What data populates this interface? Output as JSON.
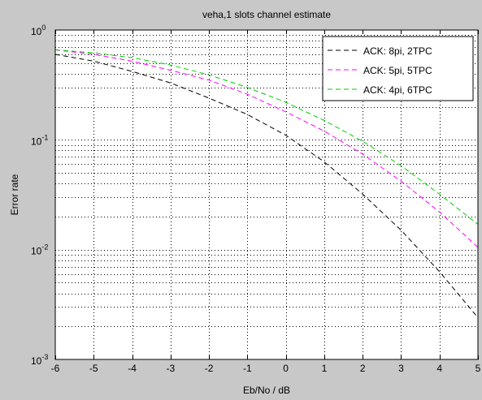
{
  "chart_data": {
    "type": "line",
    "title": "veha,1 slots channel estimate",
    "xlabel": "Eb/No / dB",
    "ylabel": "Error rate",
    "xlim": [
      -6,
      5
    ],
    "ylim": [
      0.001,
      1
    ],
    "yscale": "log",
    "grid": "on (dotted, major and minor)",
    "legend_position": "top-right",
    "x_ticks": [
      "-6",
      "-5",
      "-4",
      "-3",
      "-2",
      "-1",
      "0",
      "1",
      "2",
      "3",
      "4",
      "5"
    ],
    "y_ticks": [
      {
        "base": "10",
        "exp": "0",
        "value": 1
      },
      {
        "base": "10",
        "exp": "-1",
        "value": 0.1
      },
      {
        "base": "10",
        "exp": "-2",
        "value": 0.01
      },
      {
        "base": "10",
        "exp": "-3",
        "value": 0.001
      }
    ],
    "x": [
      -6,
      -5,
      -4,
      -3,
      -2,
      -1,
      0,
      1,
      2,
      3,
      4,
      5
    ],
    "series": [
      {
        "name": "ACK: 8pi, 2TPC",
        "color": "#000000",
        "values": [
          0.6,
          0.52,
          0.42,
          0.33,
          0.24,
          0.17,
          0.11,
          0.063,
          0.032,
          0.015,
          0.0063,
          0.0024
        ]
      },
      {
        "name": "ACK: 5pi, 5TPC",
        "color": "#ff00ff",
        "values": [
          0.66,
          0.6,
          0.52,
          0.43,
          0.35,
          0.26,
          0.18,
          0.12,
          0.074,
          0.042,
          0.022,
          0.0105
        ]
      },
      {
        "name": "ACK: 4pi, 6TPC",
        "color": "#00cc00",
        "values": [
          0.66,
          0.62,
          0.56,
          0.48,
          0.39,
          0.3,
          0.22,
          0.15,
          0.097,
          0.058,
          0.032,
          0.017
        ]
      }
    ]
  }
}
